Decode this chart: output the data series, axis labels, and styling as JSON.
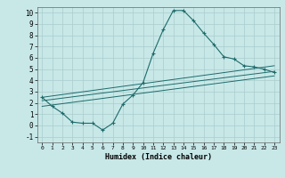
{
  "xlabel": "Humidex (Indice chaleur)",
  "background_color": "#c8e8e8",
  "line_color": "#1e6b6b",
  "xlim": [
    -0.5,
    23.5
  ],
  "ylim": [
    -1.5,
    10.5
  ],
  "xticks": [
    0,
    1,
    2,
    3,
    4,
    5,
    6,
    7,
    8,
    9,
    10,
    11,
    12,
    13,
    14,
    15,
    16,
    17,
    18,
    19,
    20,
    21,
    22,
    23
  ],
  "yticks": [
    -1,
    0,
    1,
    2,
    3,
    4,
    5,
    6,
    7,
    8,
    9,
    10
  ],
  "line1_x": [
    0,
    1,
    2,
    3,
    4,
    5,
    6,
    7,
    8,
    9,
    10,
    11,
    12,
    13,
    14,
    15,
    16,
    17,
    18,
    19,
    20,
    21,
    22,
    23
  ],
  "line1_y": [
    2.5,
    1.7,
    1.1,
    0.3,
    0.2,
    0.2,
    -0.4,
    0.2,
    1.9,
    2.7,
    3.8,
    6.4,
    8.5,
    10.2,
    10.2,
    9.3,
    8.2,
    7.2,
    6.1,
    5.9,
    5.3,
    5.2,
    5.0,
    4.7
  ],
  "line2_x": [
    0,
    23
  ],
  "line2_y": [
    2.2,
    4.8
  ],
  "line3_x": [
    0,
    23
  ],
  "line3_y": [
    2.5,
    5.3
  ],
  "line4_x": [
    0,
    23
  ],
  "line4_y": [
    1.7,
    4.4
  ],
  "grid_color": "#aacccc",
  "marker": "+"
}
